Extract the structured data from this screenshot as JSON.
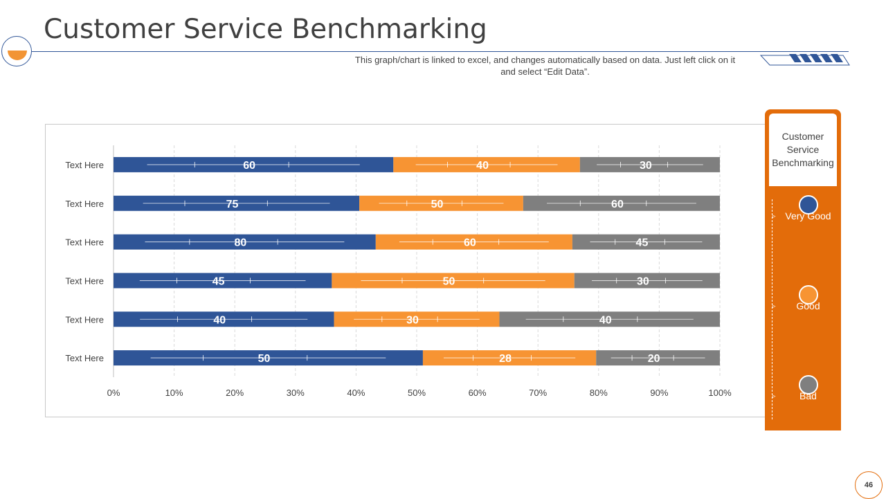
{
  "title": "Customer Service Benchmarking",
  "subtitle_line1": "This graph/chart is linked to excel, and changes automatically based on data. Just left click on it",
  "subtitle_line2": "and select “Edit Data”.",
  "page_number": "46",
  "legend": {
    "title": "Customer Service Benchmarking",
    "items": [
      {
        "label": "Very Good",
        "color": "#2f5597"
      },
      {
        "label": "Good",
        "color": "#f79433"
      },
      {
        "label": "Bad",
        "color": "#7f7f7f"
      }
    ]
  },
  "colors": {
    "accent": "#e36c0a",
    "primary": "#2f5597",
    "secondary": "#f79433",
    "neutral": "#7f7f7f"
  },
  "chart_data": {
    "type": "bar",
    "orientation": "horizontal",
    "stacked": "percent",
    "categories": [
      "Text Here",
      "Text Here",
      "Text Here",
      "Text Here",
      "Text Here",
      "Text Here"
    ],
    "series": [
      {
        "name": "Very Good",
        "values": [
          60,
          75,
          80,
          45,
          40,
          50
        ]
      },
      {
        "name": "Good",
        "values": [
          40,
          50,
          60,
          50,
          30,
          28
        ]
      },
      {
        "name": "Bad",
        "values": [
          30,
          60,
          45,
          30,
          40,
          20
        ]
      }
    ],
    "x_ticks": [
      "0%",
      "10%",
      "20%",
      "30%",
      "40%",
      "50%",
      "60%",
      "70%",
      "80%",
      "90%",
      "100%"
    ],
    "xlim": [
      0,
      100
    ],
    "grid": "vertical dashed",
    "legend_position": "right"
  }
}
